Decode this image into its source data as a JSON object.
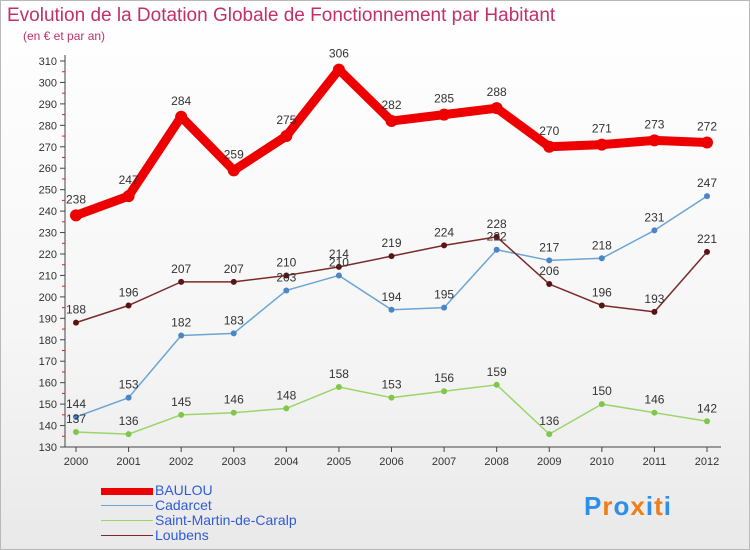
{
  "header": {
    "title": "Evolution de la Dotation Globale de Fonctionnement par Habitant",
    "subtitle": "(en € et par an)"
  },
  "logo": {
    "text": "Proxiti",
    "colors": [
      "#2e8fe6",
      "#f07d18",
      "#2e8fe6",
      "#f07d18",
      "#2e8fe6",
      "#f07d18",
      "#2e8fe6"
    ]
  },
  "chart_data": {
    "type": "line",
    "title": "Evolution de la Dotation Globale de Fonctionnement par Habitant",
    "subtitle": "(en € et par an)",
    "x": [
      "2000",
      "2001",
      "2002",
      "2003",
      "2004",
      "2005",
      "2006",
      "2007",
      "2008",
      "2009",
      "2010",
      "2011",
      "2012"
    ],
    "ylim": [
      130,
      310
    ],
    "yticks": [
      130,
      140,
      150,
      160,
      170,
      180,
      190,
      200,
      210,
      220,
      230,
      240,
      250,
      260,
      270,
      280,
      290,
      300,
      310
    ],
    "grid": false,
    "legend": "bottom-left",
    "series": [
      {
        "name": "BAULOU",
        "color": "#ee0000",
        "values": [
          238,
          247,
          284,
          259,
          275,
          306,
          282,
          285,
          288,
          270,
          271,
          273,
          272
        ]
      },
      {
        "name": "Cadarcet",
        "color": "#6aa5d6",
        "values": [
          144,
          153,
          182,
          183,
          203,
          210,
          194,
          195,
          222,
          217,
          218,
          231,
          247
        ]
      },
      {
        "name": "Saint-Martin-de-Caralp",
        "color": "#9ad56a",
        "values": [
          137,
          136,
          145,
          146,
          148,
          158,
          153,
          156,
          159,
          136,
          150,
          146,
          142
        ]
      },
      {
        "name": "Loubens",
        "color": "#7a2a2a",
        "values": [
          188,
          196,
          207,
          207,
          210,
          214,
          219,
          224,
          228,
          206,
          196,
          193,
          221
        ]
      }
    ]
  }
}
